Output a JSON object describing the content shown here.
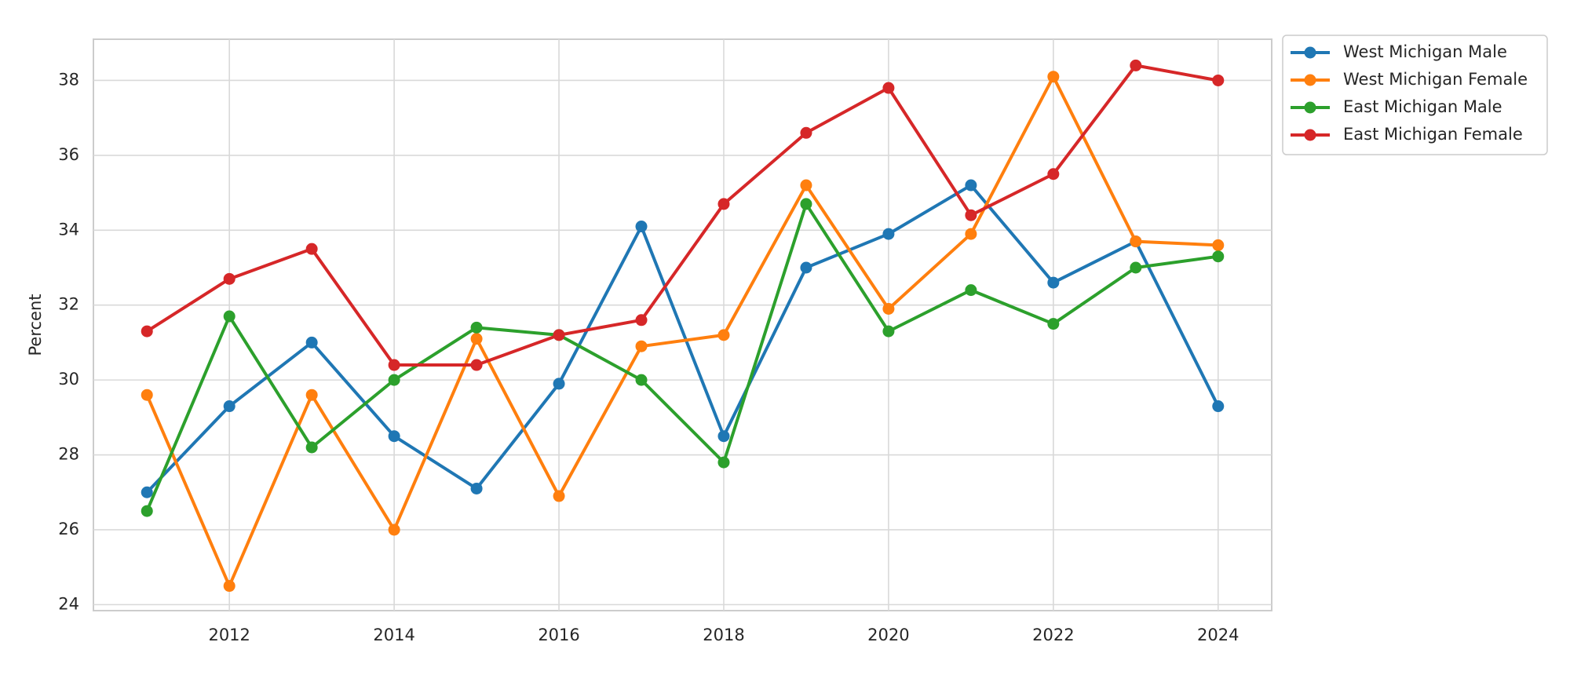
{
  "chart_data": {
    "type": "line",
    "ylabel": "Percent",
    "x": [
      2011,
      2012,
      2013,
      2014,
      2015,
      2016,
      2017,
      2018,
      2019,
      2020,
      2021,
      2022,
      2023,
      2024
    ],
    "series": [
      {
        "name": "West Michigan Male",
        "color": "#1f77b4",
        "values": [
          27.0,
          29.3,
          31.0,
          28.5,
          27.1,
          29.9,
          34.1,
          28.5,
          33.0,
          33.9,
          35.2,
          32.6,
          33.7,
          29.3
        ]
      },
      {
        "name": "West Michigan Female",
        "color": "#ff7f0e",
        "values": [
          29.6,
          24.5,
          29.6,
          26.0,
          31.1,
          26.9,
          30.9,
          31.2,
          35.2,
          31.9,
          33.9,
          38.1,
          33.7,
          33.6
        ]
      },
      {
        "name": "East Michigan Male",
        "color": "#2ca02c",
        "values": [
          26.5,
          31.7,
          28.2,
          30.0,
          31.4,
          31.2,
          30.0,
          27.8,
          34.7,
          31.3,
          32.4,
          31.5,
          33.0,
          33.3
        ]
      },
      {
        "name": "East Michigan Female",
        "color": "#d62728",
        "values": [
          31.3,
          32.7,
          33.5,
          30.4,
          30.4,
          31.2,
          31.6,
          34.7,
          36.6,
          37.8,
          34.4,
          35.5,
          38.4,
          38.0
        ]
      }
    ],
    "xlim": [
      2010.35,
      2024.65
    ],
    "xticks": [
      2012,
      2014,
      2016,
      2018,
      2020,
      2022,
      2024
    ],
    "ylim": [
      23.84,
      39.1
    ],
    "yticks": [
      24,
      26,
      28,
      30,
      32,
      34,
      36,
      38
    ],
    "grid": true,
    "legend": "outside-upper-right"
  }
}
